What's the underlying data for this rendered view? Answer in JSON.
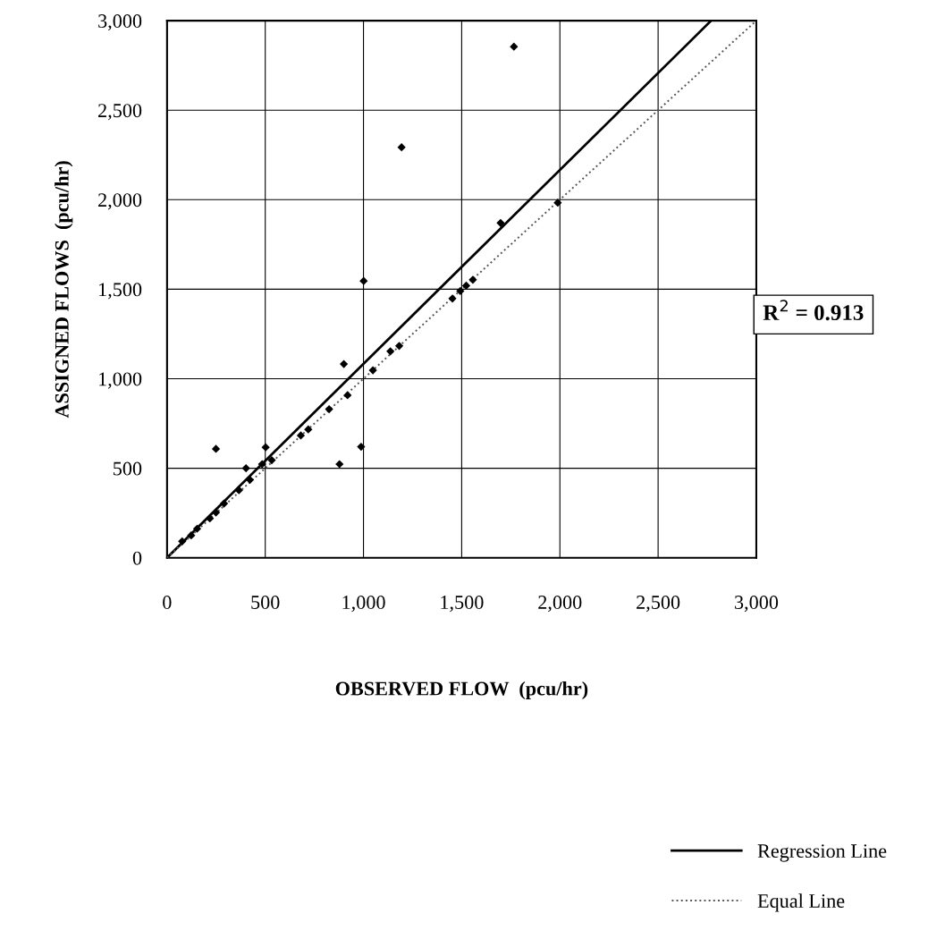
{
  "chart_data": {
    "type": "scatter",
    "xlabel": "OBSERVED FLOW  (pcu/hr)",
    "ylabel": "ASSIGNED FLOWS  (pcu/hr)",
    "annotations": [
      "R$^{2}$ = 0.913"
    ],
    "xlim": [
      0,
      3000
    ],
    "ylim": [
      0,
      3000
    ],
    "xticks": [
      0,
      500,
      {
        "value": 1000,
        "label": "1,000"
      },
      {
        "value": 1500,
        "label": "1,500"
      },
      {
        "value": 2000,
        "label": "2,000"
      },
      {
        "value": 2500,
        "label": "2,500"
      },
      {
        "value": 3000,
        "label": "3,000"
      }
    ],
    "yticks": [
      0,
      500,
      {
        "value": 1000,
        "label": "1,000"
      },
      {
        "value": 1500,
        "label": "1,500"
      },
      {
        "value": 2000,
        "label": "2,000"
      },
      {
        "value": 2500,
        "label": "2,500"
      },
      {
        "value": 3000,
        "label": "3,000"
      }
    ],
    "grid": true,
    "legend": "bottom right",
    "series": [
      {
        "color": "#000000",
        "marker": "diamond",
        "x": [
          77,
          123,
          153,
          218,
          249,
          290,
          249,
          366,
          402,
          422,
          484,
          502,
          533,
          681,
          719,
          825,
          878,
          900,
          919,
          988,
          1048,
          1137,
          1182,
          1001,
          1453,
          1493,
          1523,
          1557,
          1698,
          1989,
          1194,
          1766
        ],
        "values": [
          92,
          125,
          162,
          220,
          253,
          303,
          608,
          377,
          500,
          435,
          523,
          617,
          545,
          683,
          717,
          830,
          523,
          1082,
          908,
          620,
          1047,
          1153,
          1183,
          1546,
          1448,
          1490,
          1520,
          1553,
          1870,
          1983,
          2293,
          2855
        ]
      },
      {
        "type": "line",
        "name": "Regression Line",
        "color": "#000000",
        "line_style": "solid",
        "x": [
          0,
          2770
        ],
        "values": [
          0,
          3000
        ]
      },
      {
        "type": "line",
        "name": "Equal Line",
        "color": "#555555",
        "line_style": "dotted",
        "x": [
          0,
          3000
        ],
        "values": [
          0,
          3000
        ]
      }
    ]
  }
}
